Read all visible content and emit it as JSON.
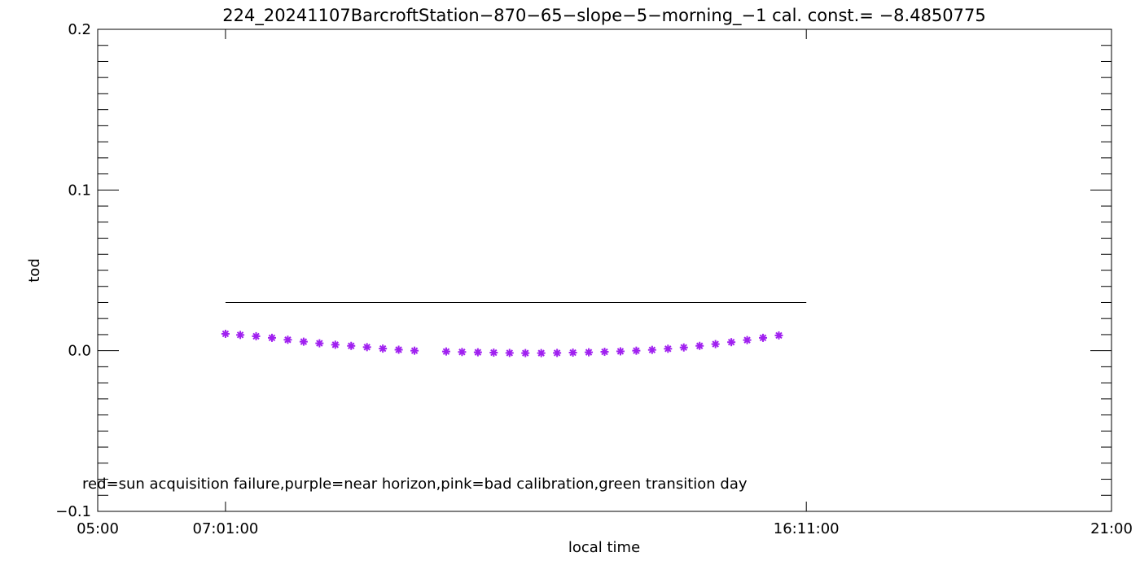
{
  "chart_data": {
    "type": "scatter",
    "title": "224_20241107BarcroftStation−870−65−slope−5−morning_−1 cal. const.= −8.4850775",
    "xlabel": "local time",
    "ylabel": "tod",
    "xlim": [
      "05:00",
      "21:00"
    ],
    "ylim": [
      -0.1,
      0.2
    ],
    "x_ticks": [
      "05:00",
      "07:01:00",
      "16:11:00",
      "21:00"
    ],
    "y_ticks": [
      "−0.1",
      "0.0",
      "0.1",
      "0.2"
    ],
    "y_tick_values": [
      -0.1,
      0.0,
      0.1,
      0.2
    ],
    "reference_line": {
      "x_start": "07:01:00",
      "x_end": "16:11:00",
      "y": 0.03
    },
    "annotation": "red=sun acquisition failure,purple=near horizon,pink=bad calibration,green transition day",
    "series": [
      {
        "marker": "asterisk",
        "color": "#a020f0",
        "values": [
          {
            "x": "07:01",
            "y": 0.0105
          },
          {
            "x": "07:15",
            "y": 0.0098
          },
          {
            "x": "07:30",
            "y": 0.009
          },
          {
            "x": "07:45",
            "y": 0.008
          },
          {
            "x": "08:00",
            "y": 0.0068
          },
          {
            "x": "08:15",
            "y": 0.0056
          },
          {
            "x": "08:30",
            "y": 0.0046
          },
          {
            "x": "08:45",
            "y": 0.0037
          },
          {
            "x": "09:00",
            "y": 0.003
          },
          {
            "x": "09:15",
            "y": 0.0022
          },
          {
            "x": "09:30",
            "y": 0.0013
          },
          {
            "x": "09:45",
            "y": 0.0006
          },
          {
            "x": "10:00",
            "y": 0.0
          },
          {
            "x": "10:30",
            "y": -0.0005
          },
          {
            "x": "10:45",
            "y": -0.0008
          },
          {
            "x": "11:00",
            "y": -0.001
          },
          {
            "x": "11:15",
            "y": -0.0012
          },
          {
            "x": "11:30",
            "y": -0.0014
          },
          {
            "x": "11:45",
            "y": -0.0015
          },
          {
            "x": "12:00",
            "y": -0.0015
          },
          {
            "x": "12:15",
            "y": -0.0014
          },
          {
            "x": "12:30",
            "y": -0.0012
          },
          {
            "x": "12:45",
            "y": -0.001
          },
          {
            "x": "13:00",
            "y": -0.0007
          },
          {
            "x": "13:15",
            "y": -0.0004
          },
          {
            "x": "13:30",
            "y": 0.0
          },
          {
            "x": "13:45",
            "y": 0.0005
          },
          {
            "x": "14:00",
            "y": 0.0012
          },
          {
            "x": "14:15",
            "y": 0.002
          },
          {
            "x": "14:30",
            "y": 0.003
          },
          {
            "x": "14:45",
            "y": 0.0041
          },
          {
            "x": "15:00",
            "y": 0.0053
          },
          {
            "x": "15:15",
            "y": 0.0066
          },
          {
            "x": "15:30",
            "y": 0.008
          },
          {
            "x": "15:45",
            "y": 0.0095
          }
        ]
      }
    ]
  }
}
